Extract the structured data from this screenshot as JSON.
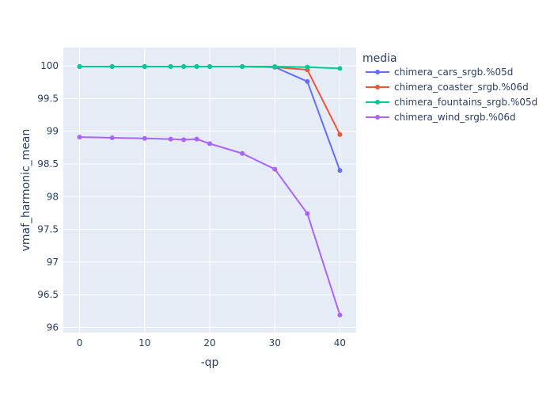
{
  "chart_data": {
    "type": "line",
    "xlabel": "-qp",
    "ylabel": "vmaf_harmonic_mean",
    "xlim": [
      -2.5,
      42.5
    ],
    "ylim": [
      95.92,
      100.28
    ],
    "x_ticks": [
      0,
      10,
      20,
      30,
      40
    ],
    "y_ticks": [
      96,
      96.5,
      97,
      97.5,
      98,
      98.5,
      99,
      99.5,
      100
    ],
    "y_tick_labels": [
      "96",
      "96.5",
      "97",
      "97.5",
      "98",
      "98.5",
      "99",
      "99.5",
      "100"
    ],
    "grid": true,
    "legend_title": "media",
    "legend_position": "right",
    "series": [
      {
        "name": "chimera_cars_srgb.%05d",
        "color": "#636efa",
        "x": [
          0,
          5,
          10,
          14,
          16,
          18,
          20,
          25,
          30,
          35,
          40
        ],
        "values": [
          99.99,
          99.99,
          99.99,
          99.99,
          99.99,
          99.99,
          99.99,
          99.99,
          99.98,
          99.76,
          98.4
        ]
      },
      {
        "name": "chimera_coaster_srgb.%06d",
        "color": "#ef553b",
        "x": [
          0,
          5,
          10,
          14,
          16,
          18,
          20,
          25,
          30,
          35,
          40
        ],
        "values": [
          99.99,
          99.99,
          99.99,
          99.99,
          99.99,
          99.99,
          99.99,
          99.99,
          99.98,
          99.94,
          98.95
        ]
      },
      {
        "name": "chimera_fountains_srgb.%05d",
        "color": "#00cc96",
        "x": [
          0,
          5,
          10,
          14,
          16,
          18,
          20,
          25,
          30,
          35,
          40
        ],
        "values": [
          99.99,
          99.99,
          99.99,
          99.99,
          99.99,
          99.99,
          99.99,
          99.99,
          99.99,
          99.98,
          99.96
        ]
      },
      {
        "name": "chimera_wind_srgb.%06d",
        "color": "#ab63fa",
        "x": [
          0,
          5,
          10,
          14,
          16,
          18,
          20,
          25,
          30,
          35,
          40
        ],
        "values": [
          98.91,
          98.9,
          98.89,
          98.88,
          98.87,
          98.88,
          98.81,
          98.66,
          98.42,
          97.74,
          96.19
        ]
      }
    ]
  }
}
